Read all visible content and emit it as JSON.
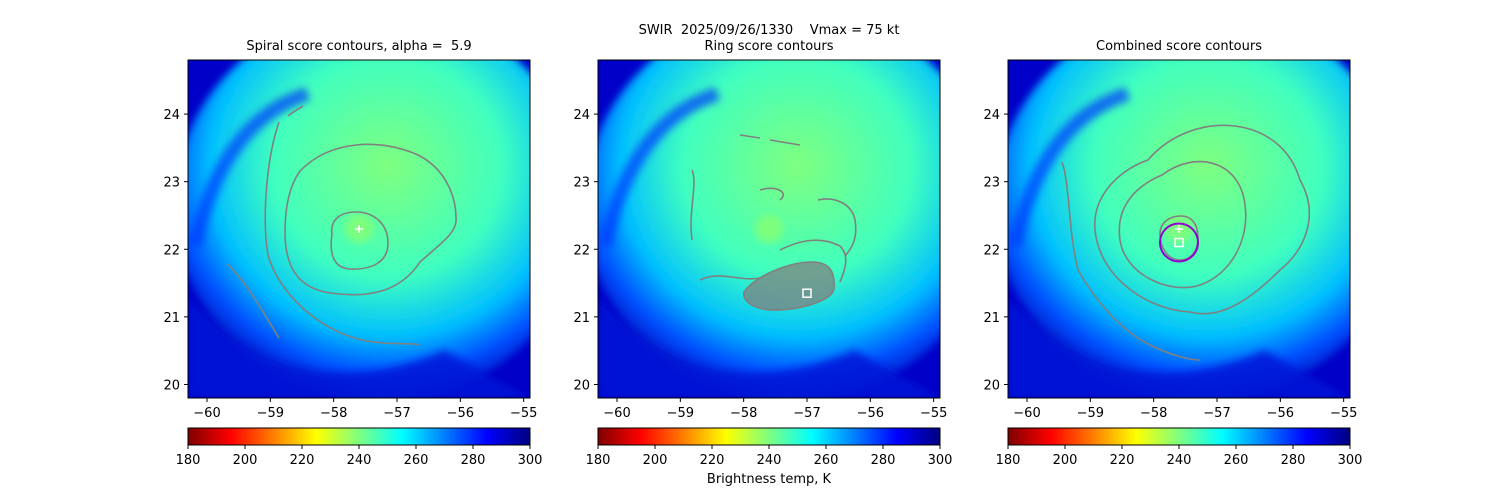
{
  "figure": {
    "suptitle_line1": "SWIR  2025/09/26/1330    Vmax = 75 kt",
    "colorbar_label": "Brightness temp, K"
  },
  "chart_data": [
    {
      "type": "heatmap",
      "title": "Spiral score contours, alpha =  5.9",
      "xlim": [
        -60.3,
        -54.9
      ],
      "ylim": [
        19.8,
        24.8
      ],
      "xticks": [
        -60,
        -59,
        -58,
        -57,
        -56,
        -55
      ],
      "yticks": [
        20,
        21,
        22,
        23,
        24
      ],
      "xtick_labels": [
        "−60",
        "−59",
        "−58",
        "−57",
        "−56",
        "−55"
      ],
      "ytick_labels": [
        "20",
        "21",
        "22",
        "23",
        "24"
      ],
      "colorbar": {
        "cmap": "jet_r",
        "range": [
          180,
          300
        ],
        "ticks": [
          "180",
          "200",
          "220",
          "240",
          "260",
          "280",
          "300"
        ]
      },
      "markers": [
        {
          "type": "plus",
          "x": -57.6,
          "y": 22.3
        }
      ],
      "circle": null
    },
    {
      "type": "heatmap",
      "title": "Ring score contours",
      "xlim": [
        -60.3,
        -54.9
      ],
      "ylim": [
        19.8,
        24.8
      ],
      "xticks": [
        -60,
        -59,
        -58,
        -57,
        -56,
        -55
      ],
      "yticks": [
        20,
        21,
        22,
        23,
        24
      ],
      "xtick_labels": [
        "−60",
        "−59",
        "−58",
        "−57",
        "−56",
        "−55"
      ],
      "ytick_labels": [
        "20",
        "21",
        "22",
        "23",
        "24"
      ],
      "colorbar": {
        "cmap": "jet_r",
        "range": [
          180,
          300
        ],
        "ticks": [
          "180",
          "200",
          "220",
          "240",
          "260",
          "280",
          "300"
        ]
      },
      "markers": [
        {
          "type": "square",
          "x": -57.0,
          "y": 21.35
        }
      ],
      "circle": null
    },
    {
      "type": "heatmap",
      "title": "Combined score contours",
      "xlim": [
        -60.3,
        -54.9
      ],
      "ylim": [
        19.8,
        24.8
      ],
      "xticks": [
        -60,
        -59,
        -58,
        -57,
        -56,
        -55
      ],
      "yticks": [
        20,
        21,
        22,
        23,
        24
      ],
      "xtick_labels": [
        "−60",
        "−59",
        "−58",
        "−57",
        "−56",
        "−55"
      ],
      "ytick_labels": [
        "20",
        "21",
        "22",
        "23",
        "24"
      ],
      "colorbar": {
        "cmap": "jet_r",
        "range": [
          180,
          300
        ],
        "ticks": [
          "180",
          "200",
          "220",
          "240",
          "260",
          "280",
          "300"
        ]
      },
      "markers": [
        {
          "type": "plus",
          "x": -57.6,
          "y": 22.3
        },
        {
          "type": "square",
          "x": -57.6,
          "y": 22.1
        }
      ],
      "circle": {
        "x": -57.6,
        "y": 22.1,
        "r_deg": 0.3
      }
    }
  ],
  "colors": {
    "contour": "#808080",
    "marker": "#ffffff",
    "circle": "#9400d3",
    "jet_r": [
      "#7f0000",
      "#ff0000",
      "#ff7f00",
      "#ffff00",
      "#7fff7f",
      "#00ffff",
      "#007fff",
      "#0000ff",
      "#00007f"
    ]
  }
}
